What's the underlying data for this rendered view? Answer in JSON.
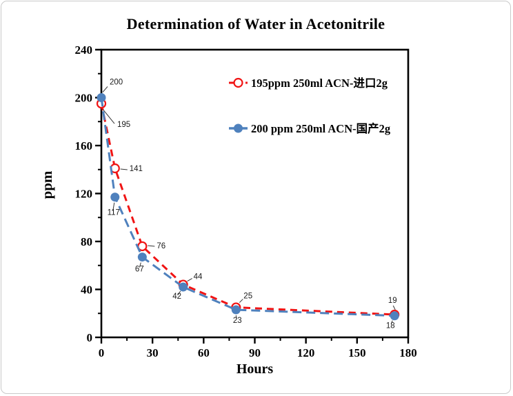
{
  "page": {
    "background": "#ffffff",
    "card_border_color": "#c9c9c9"
  },
  "chart_data": {
    "type": "line",
    "title": "Determination of Water in Acetonitrile",
    "xlabel": "Hours",
    "ylabel": "ppm",
    "xlim": [
      0,
      180
    ],
    "ylim": [
      0,
      240
    ],
    "x_major_ticks": [
      0,
      30,
      60,
      90,
      120,
      150,
      180
    ],
    "x_minor_ticks": [
      15,
      45,
      75,
      105,
      135,
      165
    ],
    "y_major_ticks": [
      0,
      40,
      80,
      120,
      160,
      200,
      240
    ],
    "y_minor_ticks": [
      20,
      60,
      100,
      140,
      180,
      220
    ],
    "grid": false,
    "legend_position": "inside-top-right",
    "data_labels": true,
    "axis_color": "#000000",
    "x": [
      0,
      8,
      24,
      48,
      79,
      172
    ],
    "series": [
      {
        "name": "195ppm  250ml ACN-进口2g",
        "color": "#f01414",
        "marker": "open-circle",
        "line_style": "dashed",
        "values": [
          195,
          141,
          76,
          44,
          25,
          19
        ]
      },
      {
        "name": "200 ppm 250ml ACN-国产2g",
        "color": "#4f81bd",
        "marker": "filled-circle",
        "line_style": "dashed",
        "values": [
          200,
          117,
          67,
          42,
          23,
          18
        ]
      }
    ]
  }
}
